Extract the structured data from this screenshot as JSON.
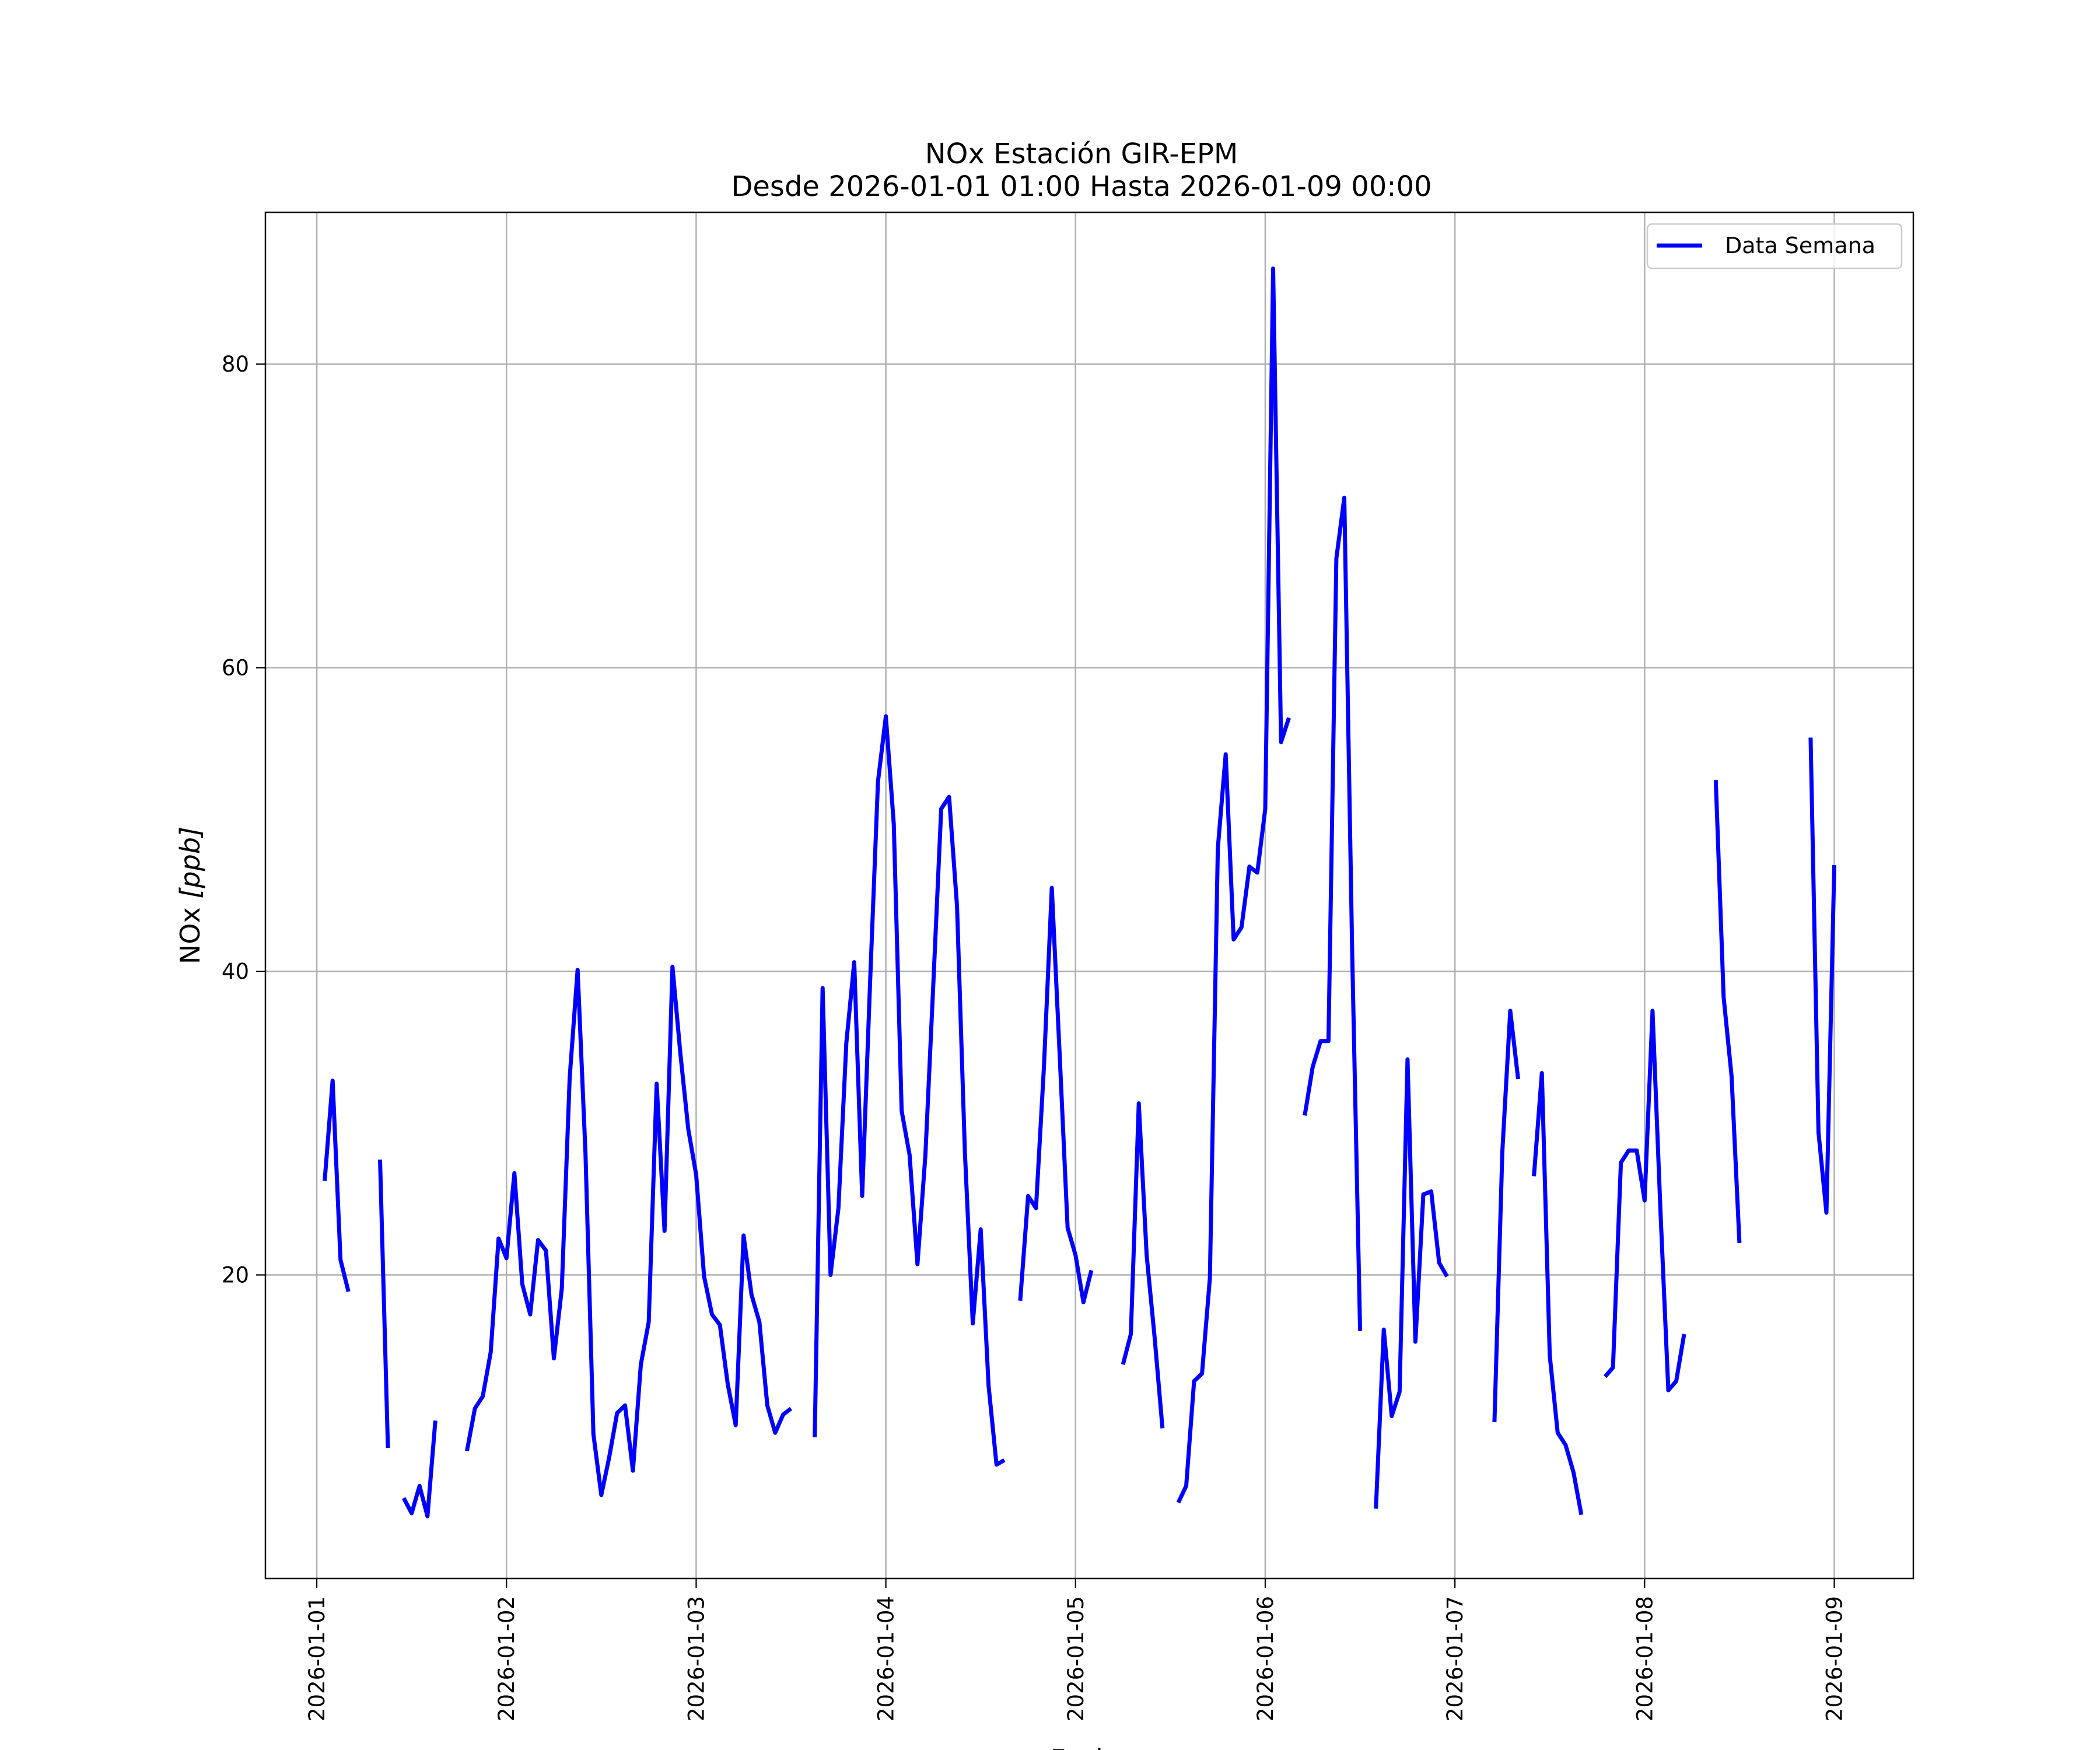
{
  "chart_data": {
    "type": "line",
    "title": "NOx Estación GIR-EPM",
    "subtitle": "Desde 2026-01-01 01:00 Hasta 2026-01-09 00:00",
    "xlabel": "Fecha",
    "ylabel": "NOx [ppb]",
    "ylabel_main": "NOx ",
    "ylabel_unit": "[ppb]",
    "xlim": [
      "2025-12-31 17:30",
      "2026-01-09 10:00"
    ],
    "ylim": [
      0,
      90
    ],
    "x_ticks": [
      "2026-01-01",
      "2026-01-02",
      "2026-01-03",
      "2026-01-04",
      "2026-01-05",
      "2026-01-06",
      "2026-01-07",
      "2026-01-08",
      "2026-01-09"
    ],
    "y_ticks": [
      20,
      40,
      60,
      80
    ],
    "y_tick_labels": [
      "20",
      "40",
      "60",
      "80"
    ],
    "grid": true,
    "legend_position": "top-right",
    "colors": {
      "series": "#0000ff"
    },
    "series": [
      {
        "name": "Data Semana",
        "color": "#0000ff",
        "segments": [
          [
            [
              "2026-01-01 01:00",
              26.2
            ],
            [
              "2026-01-01 02:00",
              32.8
            ],
            [
              "2026-01-01 03:00",
              21.0
            ],
            [
              "2026-01-01 04:00",
              18.9
            ]
          ],
          [
            [
              "2026-01-01 08:00",
              27.6
            ],
            [
              "2026-01-01 09:00",
              8.6
            ]
          ],
          [
            [
              "2026-01-01 11:00",
              5.3
            ],
            [
              "2026-01-01 12:00",
              4.3
            ],
            [
              "2026-01-01 13:00",
              6.1
            ],
            [
              "2026-01-01 14:00",
              4.1
            ],
            [
              "2026-01-01 15:00",
              10.4
            ]
          ],
          [
            [
              "2026-01-01 19:00",
              8.4
            ],
            [
              "2026-01-01 20:00",
              11.2
            ],
            [
              "2026-01-01 21:00",
              12.0
            ],
            [
              "2026-01-01 22:00",
              14.9
            ],
            [
              "2026-01-01 23:00",
              22.4
            ],
            [
              "2026-01-02 00:00",
              21.1
            ],
            [
              "2026-01-02 01:00",
              26.7
            ],
            [
              "2026-01-02 02:00",
              19.4
            ],
            [
              "2026-01-02 03:00",
              17.4
            ],
            [
              "2026-01-02 04:00",
              22.3
            ],
            [
              "2026-01-02 05:00",
              21.6
            ],
            [
              "2026-01-02 06:00",
              14.5
            ],
            [
              "2026-01-02 07:00",
              19.1
            ],
            [
              "2026-01-02 08:00",
              33.0
            ],
            [
              "2026-01-02 09:00",
              40.1
            ],
            [
              "2026-01-02 10:00",
              28.0
            ],
            [
              "2026-01-02 11:00",
              9.5
            ],
            [
              "2026-01-02 12:00",
              5.5
            ],
            [
              "2026-01-02 13:00",
              8.0
            ],
            [
              "2026-01-02 14:00",
              10.9
            ],
            [
              "2026-01-02 15:00",
              11.4
            ],
            [
              "2026-01-02 16:00",
              7.1
            ],
            [
              "2026-01-02 17:00",
              14.1
            ],
            [
              "2026-01-02 18:00",
              16.9
            ],
            [
              "2026-01-02 19:00",
              32.6
            ],
            [
              "2026-01-02 20:00",
              22.9
            ],
            [
              "2026-01-02 21:00",
              40.3
            ],
            [
              "2026-01-02 22:00",
              34.6
            ],
            [
              "2026-01-02 23:00",
              29.6
            ],
            [
              "2026-01-03 00:00",
              26.6
            ],
            [
              "2026-01-03 01:00",
              19.9
            ],
            [
              "2026-01-03 02:00",
              17.4
            ],
            [
              "2026-01-03 03:00",
              16.7
            ],
            [
              "2026-01-03 04:00",
              12.8
            ],
            [
              "2026-01-03 05:00",
              10.1
            ],
            [
              "2026-01-03 06:00",
              22.6
            ],
            [
              "2026-01-03 07:00",
              18.7
            ],
            [
              "2026-01-03 08:00",
              16.9
            ],
            [
              "2026-01-03 09:00",
              11.4
            ],
            [
              "2026-01-03 10:00",
              9.6
            ],
            [
              "2026-01-03 11:00",
              10.8
            ],
            [
              "2026-01-03 12:00",
              11.2
            ]
          ],
          [
            [
              "2026-01-03 15:00",
              9.3
            ],
            [
              "2026-01-03 16:00",
              38.9
            ],
            [
              "2026-01-03 17:00",
              20.0
            ],
            [
              "2026-01-03 18:00",
              24.4
            ],
            [
              "2026-01-03 19:00",
              35.3
            ],
            [
              "2026-01-03 20:00",
              40.6
            ],
            [
              "2026-01-03 21:00",
              25.2
            ],
            [
              "2026-01-03 22:00",
              39.2
            ],
            [
              "2026-01-03 23:00",
              52.5
            ],
            [
              "2026-01-04 00:00",
              56.8
            ],
            [
              "2026-01-04 01:00",
              49.7
            ],
            [
              "2026-01-04 02:00",
              30.8
            ],
            [
              "2026-01-04 03:00",
              27.9
            ],
            [
              "2026-01-04 04:00",
              20.7
            ],
            [
              "2026-01-04 05:00",
              27.9
            ],
            [
              "2026-01-04 06:00",
              39.1
            ],
            [
              "2026-01-04 07:00",
              50.7
            ],
            [
              "2026-01-04 08:00",
              51.5
            ],
            [
              "2026-01-04 09:00",
              44.3
            ],
            [
              "2026-01-04 10:00",
              28.1
            ],
            [
              "2026-01-04 11:00",
              16.8
            ],
            [
              "2026-01-04 12:00",
              23.0
            ],
            [
              "2026-01-04 13:00",
              12.7
            ],
            [
              "2026-01-04 14:00",
              7.5
            ],
            [
              "2026-01-04 15:00",
              7.8
            ]
          ],
          [
            [
              "2026-01-04 17:00",
              18.3
            ],
            [
              "2026-01-04 18:00",
              25.2
            ],
            [
              "2026-01-04 19:00",
              24.4
            ],
            [
              "2026-01-04 20:00",
              33.7
            ],
            [
              "2026-01-04 21:00",
              45.5
            ],
            [
              "2026-01-04 22:00",
              34.4
            ],
            [
              "2026-01-04 23:00",
              23.1
            ],
            [
              "2026-01-05 00:00",
              21.3
            ],
            [
              "2026-01-05 01:00",
              18.2
            ],
            [
              "2026-01-05 02:00",
              20.3
            ]
          ],
          [
            [
              "2026-01-05 06:00",
              14.1
            ],
            [
              "2026-01-05 07:00",
              16.1
            ],
            [
              "2026-01-05 08:00",
              31.3
            ],
            [
              "2026-01-05 09:00",
              21.3
            ],
            [
              "2026-01-05 10:00",
              15.9
            ],
            [
              "2026-01-05 11:00",
              9.9
            ]
          ],
          [
            [
              "2026-01-05 13:00",
              5.0
            ],
            [
              "2026-01-05 14:00",
              6.1
            ],
            [
              "2026-01-05 15:00",
              13.0
            ],
            [
              "2026-01-05 16:00",
              13.5
            ],
            [
              "2026-01-05 17:00",
              19.8
            ],
            [
              "2026-01-05 18:00",
              48.1
            ],
            [
              "2026-01-05 19:00",
              54.3
            ],
            [
              "2026-01-05 20:00",
              42.1
            ],
            [
              "2026-01-05 21:00",
              42.9
            ],
            [
              "2026-01-05 22:00",
              46.9
            ],
            [
              "2026-01-05 23:00",
              46.5
            ],
            [
              "2026-01-06 00:00",
              50.7
            ],
            [
              "2026-01-06 01:00",
              86.3
            ],
            [
              "2026-01-06 02:00",
              55.1
            ],
            [
              "2026-01-06 03:00",
              56.7
            ]
          ],
          [
            [
              "2026-01-06 05:00",
              30.5
            ],
            [
              "2026-01-06 06:00",
              33.7
            ],
            [
              "2026-01-06 07:00",
              35.4
            ],
            [
              "2026-01-06 08:00",
              35.4
            ],
            [
              "2026-01-06 09:00",
              67.2
            ],
            [
              "2026-01-06 10:00",
              71.2
            ],
            [
              "2026-01-06 11:00",
              41.3
            ],
            [
              "2026-01-06 12:00",
              16.3
            ]
          ],
          [
            [
              "2026-01-06 14:00",
              4.6
            ],
            [
              "2026-01-06 15:00",
              16.4
            ],
            [
              "2026-01-06 16:00",
              10.7
            ],
            [
              "2026-01-06 17:00",
              12.3
            ],
            [
              "2026-01-06 18:00",
              34.2
            ],
            [
              "2026-01-06 19:00",
              15.6
            ],
            [
              "2026-01-06 20:00",
              25.3
            ],
            [
              "2026-01-06 21:00",
              25.5
            ],
            [
              "2026-01-06 22:00",
              20.8
            ],
            [
              "2026-01-06 23:00",
              19.9
            ]
          ],
          [
            [
              "2026-01-07 05:00",
              10.3
            ],
            [
              "2026-01-07 06:00",
              28.1
            ],
            [
              "2026-01-07 07:00",
              37.4
            ],
            [
              "2026-01-07 08:00",
              32.9
            ]
          ],
          [
            [
              "2026-01-07 10:00",
              26.5
            ],
            [
              "2026-01-07 11:00",
              33.3
            ],
            [
              "2026-01-07 12:00",
              14.7
            ],
            [
              "2026-01-07 13:00",
              9.6
            ],
            [
              "2026-01-07 14:00",
              8.8
            ],
            [
              "2026-01-07 15:00",
              7.0
            ],
            [
              "2026-01-07 16:00",
              4.2
            ]
          ],
          [
            [
              "2026-01-07 19:00",
              13.3
            ],
            [
              "2026-01-07 20:00",
              13.9
            ],
            [
              "2026-01-07 21:00",
              27.4
            ],
            [
              "2026-01-07 22:00",
              28.2
            ],
            [
              "2026-01-07 23:00",
              28.2
            ],
            [
              "2026-01-08 00:00",
              24.9
            ],
            [
              "2026-01-08 01:00",
              37.4
            ],
            [
              "2026-01-08 02:00",
              24.3
            ],
            [
              "2026-01-08 03:00",
              12.4
            ],
            [
              "2026-01-08 04:00",
              13.0
            ],
            [
              "2026-01-08 05:00",
              16.1
            ]
          ],
          [
            [
              "2026-01-08 09:00",
              52.6
            ],
            [
              "2026-01-08 10:00",
              38.3
            ],
            [
              "2026-01-08 11:00",
              33.1
            ],
            [
              "2026-01-08 12:00",
              22.1
            ]
          ],
          [
            [
              "2026-01-08 21:00",
              55.4
            ],
            [
              "2026-01-08 22:00",
              29.4
            ],
            [
              "2026-01-08 23:00",
              24.1
            ],
            [
              "2026-01-09 00:00",
              47.0
            ]
          ]
        ]
      }
    ]
  }
}
